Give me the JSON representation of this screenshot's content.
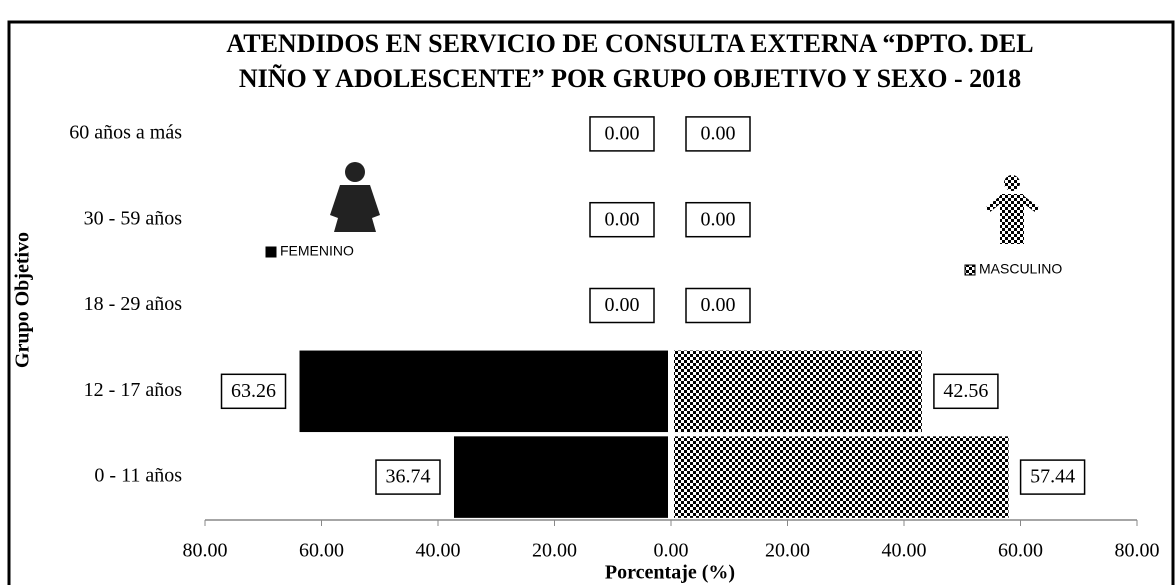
{
  "chart_data": {
    "type": "pyramid",
    "title": [
      "ATENDIDOS EN SERVICIO DE CONSULTA EXTERNA “DPTO. DEL",
      "NIÑO Y ADOLESCENTE” POR GRUPO OBJETIVO Y SEXO - 2018"
    ],
    "x_label": "Porcentaje (%)",
    "y_label": "Grupo Objetivo",
    "categories": [
      "60 años a más",
      "30 - 59 años",
      "18 - 29 años",
      "12 - 17 años",
      "0 - 11 años"
    ],
    "series": [
      {
        "name": "FEMENINO",
        "color": "#000000",
        "values": [
          0,
          0,
          0,
          63.26,
          36.74
        ],
        "value_labels": [
          "0.00",
          "0.00",
          "0.00",
          "63.26",
          "36.74"
        ]
      },
      {
        "name": "MASCULINO",
        "color": "checkered",
        "values": [
          0,
          0,
          0,
          42.56,
          57.44
        ],
        "value_labels": [
          "0.00",
          "0.00",
          "0.00",
          "42.56",
          "57.44"
        ]
      }
    ],
    "xlim": [
      -80,
      80
    ],
    "xticks": [
      {
        "value": -80,
        "label": "80.00"
      },
      {
        "value": -60,
        "label": "60.00"
      },
      {
        "value": -40,
        "label": "40.00"
      },
      {
        "value": -20,
        "label": "20.00"
      },
      {
        "value": 0,
        "label": "0.00"
      },
      {
        "value": 20,
        "label": "20.00"
      },
      {
        "value": 40,
        "label": "40.00"
      },
      {
        "value": 60,
        "label": "60.00"
      },
      {
        "value": 80,
        "label": "80.00"
      }
    ]
  }
}
